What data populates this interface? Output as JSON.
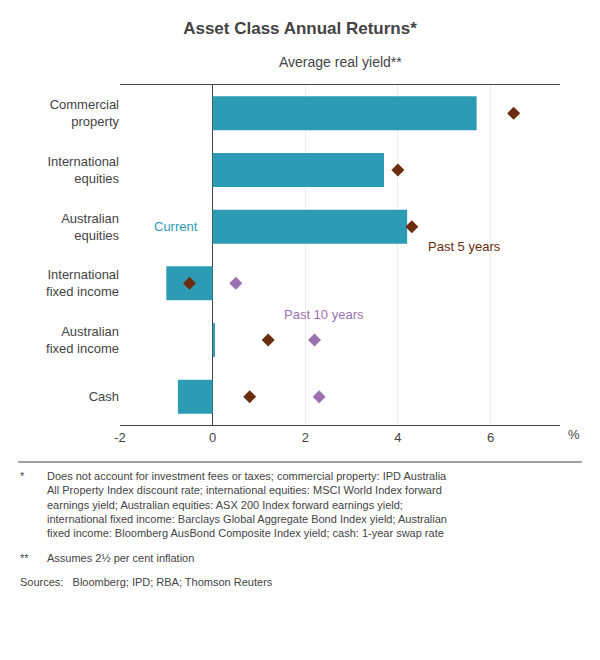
{
  "chart_data": {
    "type": "bar",
    "orientation": "horizontal",
    "title": "Asset Class Annual Returns*",
    "subtitle": "Average real yield**",
    "categories": [
      "Commercial\nproperty",
      "International\nequities",
      "Australian\nequities",
      "International\nfixed income",
      "Australian\nfixed income",
      "Cash"
    ],
    "series": [
      {
        "name": "Current",
        "type": "bar",
        "color": "#2E9BB5",
        "values": [
          5.7,
          3.7,
          4.2,
          -1.0,
          0.05,
          -0.75
        ]
      },
      {
        "name": "Past 5 years",
        "type": "scatter",
        "marker": "diamond",
        "color": "#6B2D0F",
        "values": [
          6.5,
          4.0,
          4.3,
          -0.5,
          1.2,
          0.8
        ]
      },
      {
        "name": "Past 10 years",
        "type": "scatter",
        "marker": "diamond",
        "color": "#9B72B0",
        "values": [
          null,
          null,
          null,
          0.5,
          2.2,
          2.3
        ]
      }
    ],
    "xlabel": "%",
    "xlim": [
      -2,
      7.5
    ],
    "xticks": [
      -2,
      0,
      2,
      4,
      6
    ],
    "grid": true,
    "footnotes": [
      {
        "star": "*",
        "text": "Does not account for investment fees or taxes; commercial property: IPD Australia\nAll Property Index discount rate; international equities: MSCI World Index forward\nearnings yield; Australian equities: ASX 200 Index forward earnings yield;\ninternational fixed income: Barclays Global Aggregate Bond Index yield; Australian\nfixed income: Bloomberg AusBond Composite Index yield; cash: 1-year swap rate"
      },
      {
        "star": "**",
        "text": "Assumes 2½ per cent inflation"
      },
      {
        "text": "Sources:   Bloomberg; IPD; RBA; Thomson Reuters"
      }
    ]
  }
}
